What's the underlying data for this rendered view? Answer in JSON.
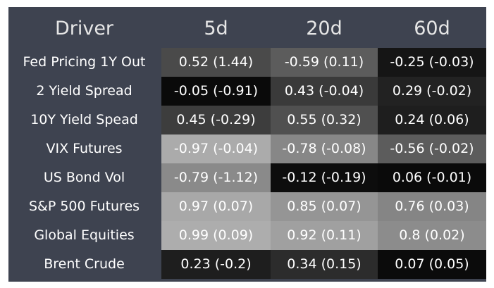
{
  "chart_data": {
    "type": "table",
    "columns": [
      "Driver",
      "5d",
      "20d",
      "60d"
    ],
    "rows": [
      {
        "driver": "Fed Pricing 1Y Out",
        "cells": [
          {
            "text": "0.52 (1.44)",
            "value": 0.52,
            "bg": "#4a4a4a"
          },
          {
            "text": "-0.59 (0.11)",
            "value": -0.59,
            "bg": "#5c5c5c"
          },
          {
            "text": "-0.25 (-0.03)",
            "value": -0.25,
            "bg": "#151515"
          }
        ]
      },
      {
        "driver": "2 Yield Spread",
        "cells": [
          {
            "text": "-0.05 (-0.91)",
            "value": -0.05,
            "bg": "#0a0a0a"
          },
          {
            "text": "0.43 (-0.04)",
            "value": 0.43,
            "bg": "#3a3a3a"
          },
          {
            "text": "0.29 (-0.02)",
            "value": 0.29,
            "bg": "#222222"
          }
        ]
      },
      {
        "driver": "10Y Yield Spead",
        "cells": [
          {
            "text": "0.45 (-0.29)",
            "value": 0.45,
            "bg": "#3d3d3d"
          },
          {
            "text": "0.55 (0.32)",
            "value": 0.55,
            "bg": "#505050"
          },
          {
            "text": "0.24 (0.06)",
            "value": 0.24,
            "bg": "#1e1e1e"
          }
        ]
      },
      {
        "driver": "VIX Futures",
        "cells": [
          {
            "text": "-0.97 (-0.04)",
            "value": -0.97,
            "bg": "#ababab"
          },
          {
            "text": "-0.78 (-0.08)",
            "value": -0.78,
            "bg": "#878787"
          },
          {
            "text": "-0.56 (-0.02)",
            "value": -0.56,
            "bg": "#5c5c5c"
          }
        ]
      },
      {
        "driver": "US Bond Vol",
        "cells": [
          {
            "text": "-0.79 (-1.12)",
            "value": -0.79,
            "bg": "#8a8a8a"
          },
          {
            "text": "-0.12 (-0.19)",
            "value": -0.12,
            "bg": "#0d0d0d"
          },
          {
            "text": "0.06 (-0.01)",
            "value": 0.06,
            "bg": "#0a0a0a"
          }
        ]
      },
      {
        "driver": "S&P 500 Futures",
        "cells": [
          {
            "text": "0.97 (0.07)",
            "value": 0.97,
            "bg": "#a8a8a8"
          },
          {
            "text": "0.85 (0.07)",
            "value": 0.85,
            "bg": "#959595"
          },
          {
            "text": "0.76 (0.03)",
            "value": 0.76,
            "bg": "#858585"
          }
        ]
      },
      {
        "driver": "Global Equities",
        "cells": [
          {
            "text": "0.99 (0.09)",
            "value": 0.99,
            "bg": "#adadad"
          },
          {
            "text": "0.92 (0.11)",
            "value": 0.92,
            "bg": "#a0a0a0"
          },
          {
            "text": "0.8 (0.02)",
            "value": 0.8,
            "bg": "#8c8c8c"
          }
        ]
      },
      {
        "driver": "Brent Crude",
        "cells": [
          {
            "text": "0.23 (-0.2)",
            "value": 0.23,
            "bg": "#1e1e1e"
          },
          {
            "text": "0.34 (0.15)",
            "value": 0.34,
            "bg": "#2c2c2c"
          },
          {
            "text": "0.07 (0.05)",
            "value": 0.07,
            "bg": "#0b0b0b"
          }
        ]
      }
    ]
  },
  "colors": {
    "header_bg": "#3e4350",
    "label_bg": "#3e4350",
    "header_text": "#e6e6e6",
    "cell_text": "#ffffff"
  }
}
